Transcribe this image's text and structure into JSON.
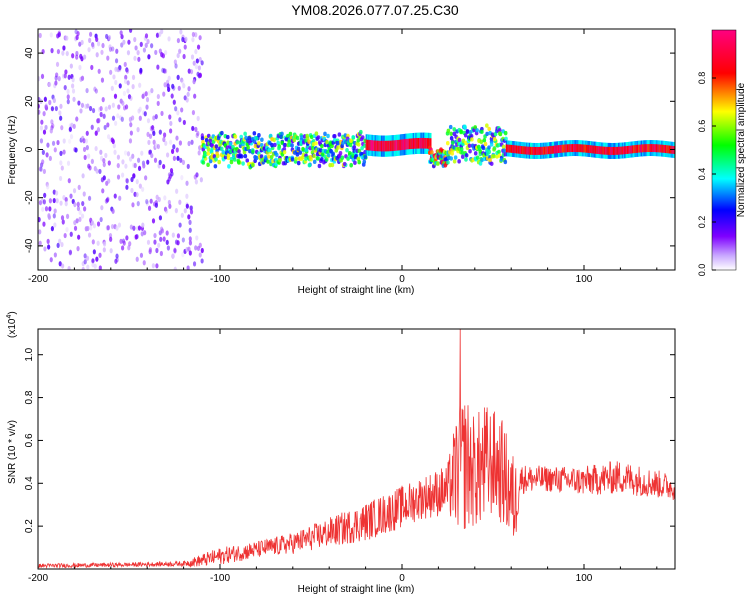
{
  "title": "YM08.2026.077.07.25.C30",
  "chart_data": [
    {
      "type": "heatmap",
      "xlabel": "Height of straight line (km)",
      "ylabel": "Frequency (Hz)",
      "xlim": [
        -200,
        150
      ],
      "ylim": [
        -50,
        50
      ],
      "x_ticks": [
        "-200",
        "-100",
        "0",
        "100"
      ],
      "y_ticks": [
        "-40",
        "-20",
        "0",
        "20",
        "40"
      ],
      "colorbar": {
        "label": "Normalized spectral amplitude",
        "range": [
          0,
          1
        ],
        "ticks": [
          "0.0",
          "0.2",
          "0.4",
          "0.6",
          "0.8"
        ],
        "colors": [
          "#ffffff",
          "#7f00ff",
          "#0000ff",
          "#00ffff",
          "#00ff00",
          "#ffff00",
          "#ff0000",
          "#ff0080"
        ]
      },
      "segments": [
        {
          "x_start": -200,
          "x_end": -110,
          "center_hz": 0,
          "spread_hz": 50,
          "amplitude": 0.08,
          "character": "scattered noise"
        },
        {
          "x_start": -110,
          "x_end": -20,
          "center_hz": 0,
          "spread_hz": 8,
          "amplitude": 0.35,
          "character": "noisy band"
        },
        {
          "x_start": -20,
          "x_end": 15,
          "center_hz": 2,
          "spread_hz": 2,
          "amplitude": 1.0,
          "character": "coherent line"
        },
        {
          "x_start": 15,
          "x_end": 25,
          "center_hz": -3,
          "spread_hz": 4,
          "amplitude": 0.5,
          "character": "dip"
        },
        {
          "x_start": 25,
          "x_end": 57,
          "center_hz": 2,
          "spread_hz": 9,
          "amplitude": 0.35,
          "character": "noisy band"
        },
        {
          "x_start": 57,
          "x_end": 150,
          "center_hz": 0,
          "spread_hz": 1.5,
          "amplitude": 0.95,
          "character": "coherent line"
        }
      ]
    },
    {
      "type": "line",
      "xlabel": "Height of straight line (km)",
      "ylabel": "SNR (10 * v/v)",
      "y_multiplier": "(x10",
      "y_multiplier_exp": "4",
      "xlim": [
        -200,
        150
      ],
      "ylim": [
        0,
        1.12
      ],
      "x_ticks": [
        "-200",
        "-100",
        "0",
        "100"
      ],
      "y_ticks": [
        "0.2",
        "0.4",
        "0.6",
        "0.8",
        "1.0"
      ],
      "line_color": "#ee3333",
      "series": [
        {
          "x": [
            -200,
            -150,
            -120,
            -110,
            -100,
            -80,
            -60,
            -40,
            -20,
            0,
            10,
            25,
            30,
            35,
            40,
            45,
            50,
            55,
            62,
            65,
            80,
            100,
            120,
            150
          ],
          "y": [
            0.015,
            0.02,
            0.025,
            0.04,
            0.06,
            0.09,
            0.12,
            0.17,
            0.22,
            0.29,
            0.33,
            0.37,
            0.45,
            0.5,
            0.45,
            0.48,
            0.5,
            0.45,
            0.3,
            0.42,
            0.42,
            0.41,
            0.43,
            0.38
          ],
          "noise_amplitude": [
            0.01,
            0.01,
            0.012,
            0.03,
            0.04,
            0.04,
            0.05,
            0.07,
            0.09,
            0.1,
            0.1,
            0.12,
            0.28,
            0.33,
            0.26,
            0.3,
            0.25,
            0.25,
            0.22,
            0.07,
            0.06,
            0.07,
            0.08,
            0.06
          ],
          "peak_y": 1.12
        }
      ]
    }
  ]
}
